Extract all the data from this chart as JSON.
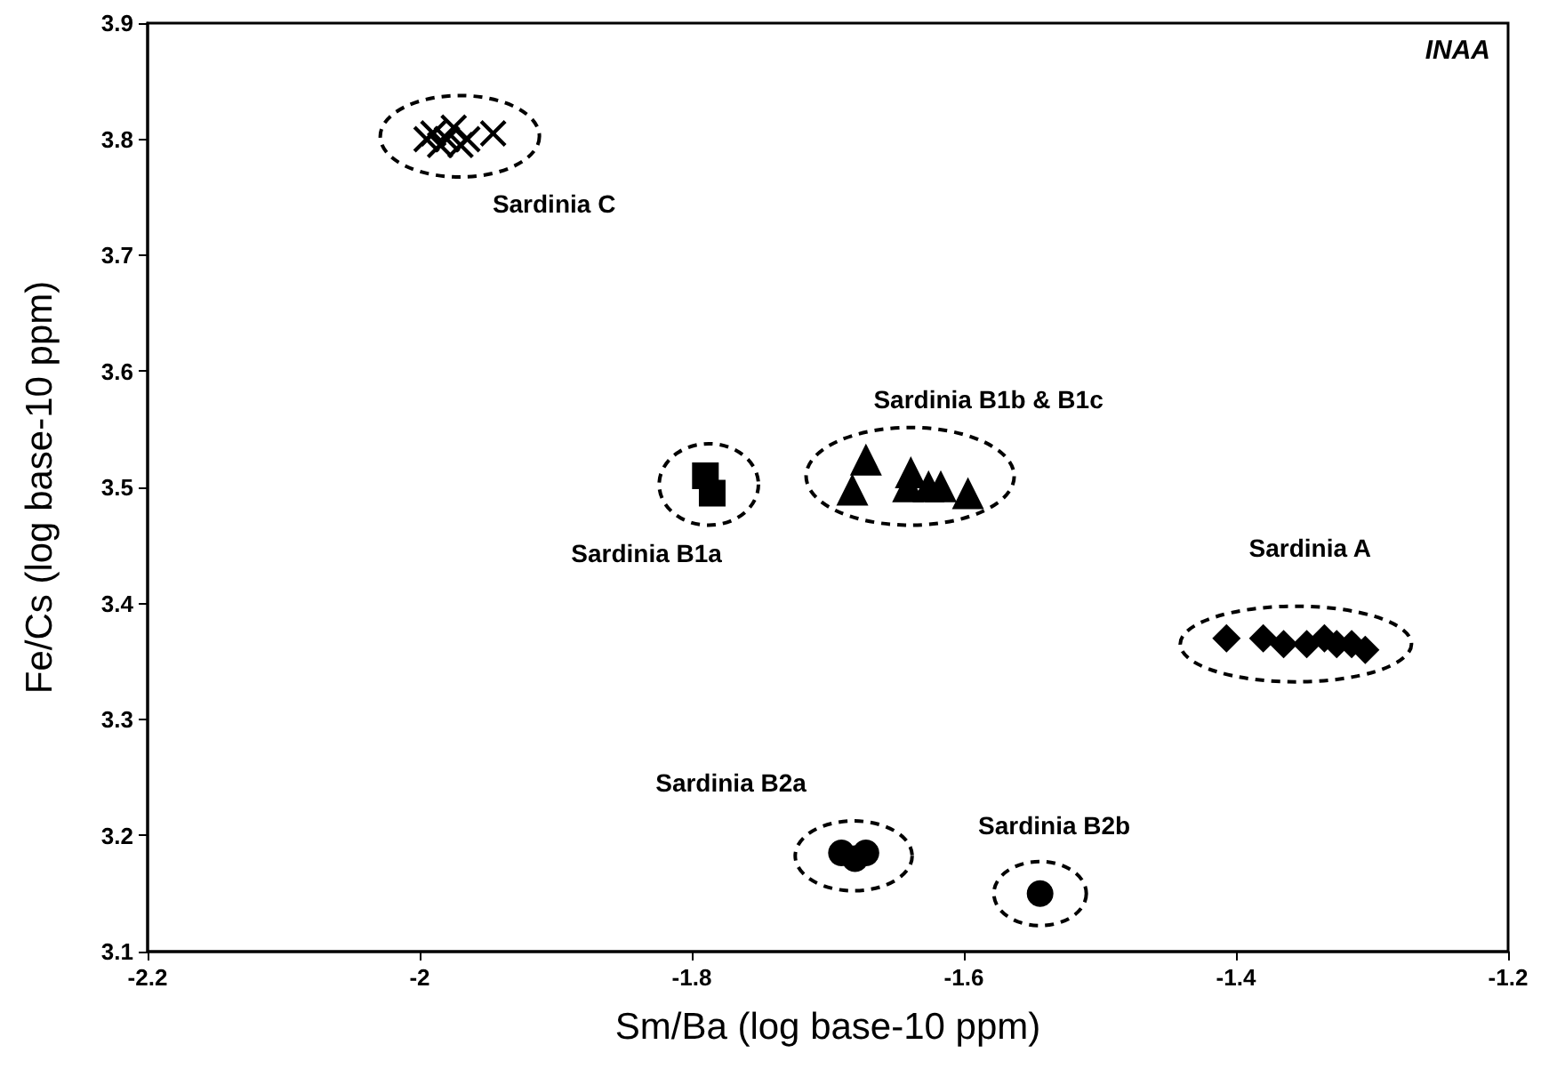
{
  "chart_data": {
    "type": "scatter",
    "xlabel": "Sm/Ba (log base-10 ppm)",
    "ylabel": "Fe/Cs (log base-10 ppm)",
    "xlim": [
      -2.2,
      -1.2
    ],
    "xticks": [
      -2.2,
      -2,
      -1.8,
      -1.6,
      -1.4,
      -1.2
    ],
    "ylim": [
      3.1,
      3.9
    ],
    "yticks": [
      3.1,
      3.2,
      3.3,
      3.4,
      3.5,
      3.6,
      3.7,
      3.8,
      3.9
    ],
    "grid": false,
    "legend": false,
    "series": [
      {
        "name": "Sardinia C",
        "color": "#000000",
        "marker": "cross",
        "x": [
          -1.995,
          -1.99,
          -1.985,
          -1.98,
          -1.975,
          -1.97,
          -1.965,
          -1.946
        ],
        "values": [
          3.8,
          3.805,
          3.795,
          3.8,
          3.81,
          3.795,
          3.8,
          3.805
        ]
      },
      {
        "name": "Sardinia B1a",
        "color": "#000000",
        "marker": "square",
        "x": [
          -1.79,
          -1.785
        ],
        "values": [
          3.51,
          3.495
        ]
      },
      {
        "name": "Sardinia B1b & B1c",
        "color": "#000000",
        "marker": "triangle",
        "x": [
          -1.682,
          -1.672,
          -1.641,
          -1.639,
          -1.626,
          -1.617,
          -1.597
        ],
        "values": [
          3.498,
          3.524,
          3.501,
          3.513,
          3.501,
          3.501,
          3.495
        ]
      },
      {
        "name": "Sardinia A",
        "color": "#000000",
        "marker": "diamond",
        "x": [
          -1.407,
          -1.38,
          -1.365,
          -1.348,
          -1.335,
          -1.326,
          -1.315,
          -1.305
        ],
        "values": [
          3.37,
          3.37,
          3.365,
          3.365,
          3.37,
          3.365,
          3.365,
          3.36
        ]
      },
      {
        "name": "Sardinia B2a",
        "color": "#000000",
        "marker": "circle",
        "x": [
          -1.69,
          -1.68,
          -1.672
        ],
        "values": [
          3.185,
          3.18,
          3.185
        ]
      },
      {
        "name": "Sardinia B2b",
        "color": "#000000",
        "marker": "circle",
        "x": [
          -1.544
        ],
        "values": [
          3.15
        ]
      }
    ],
    "annotations": [
      "INAA"
    ]
  }
}
